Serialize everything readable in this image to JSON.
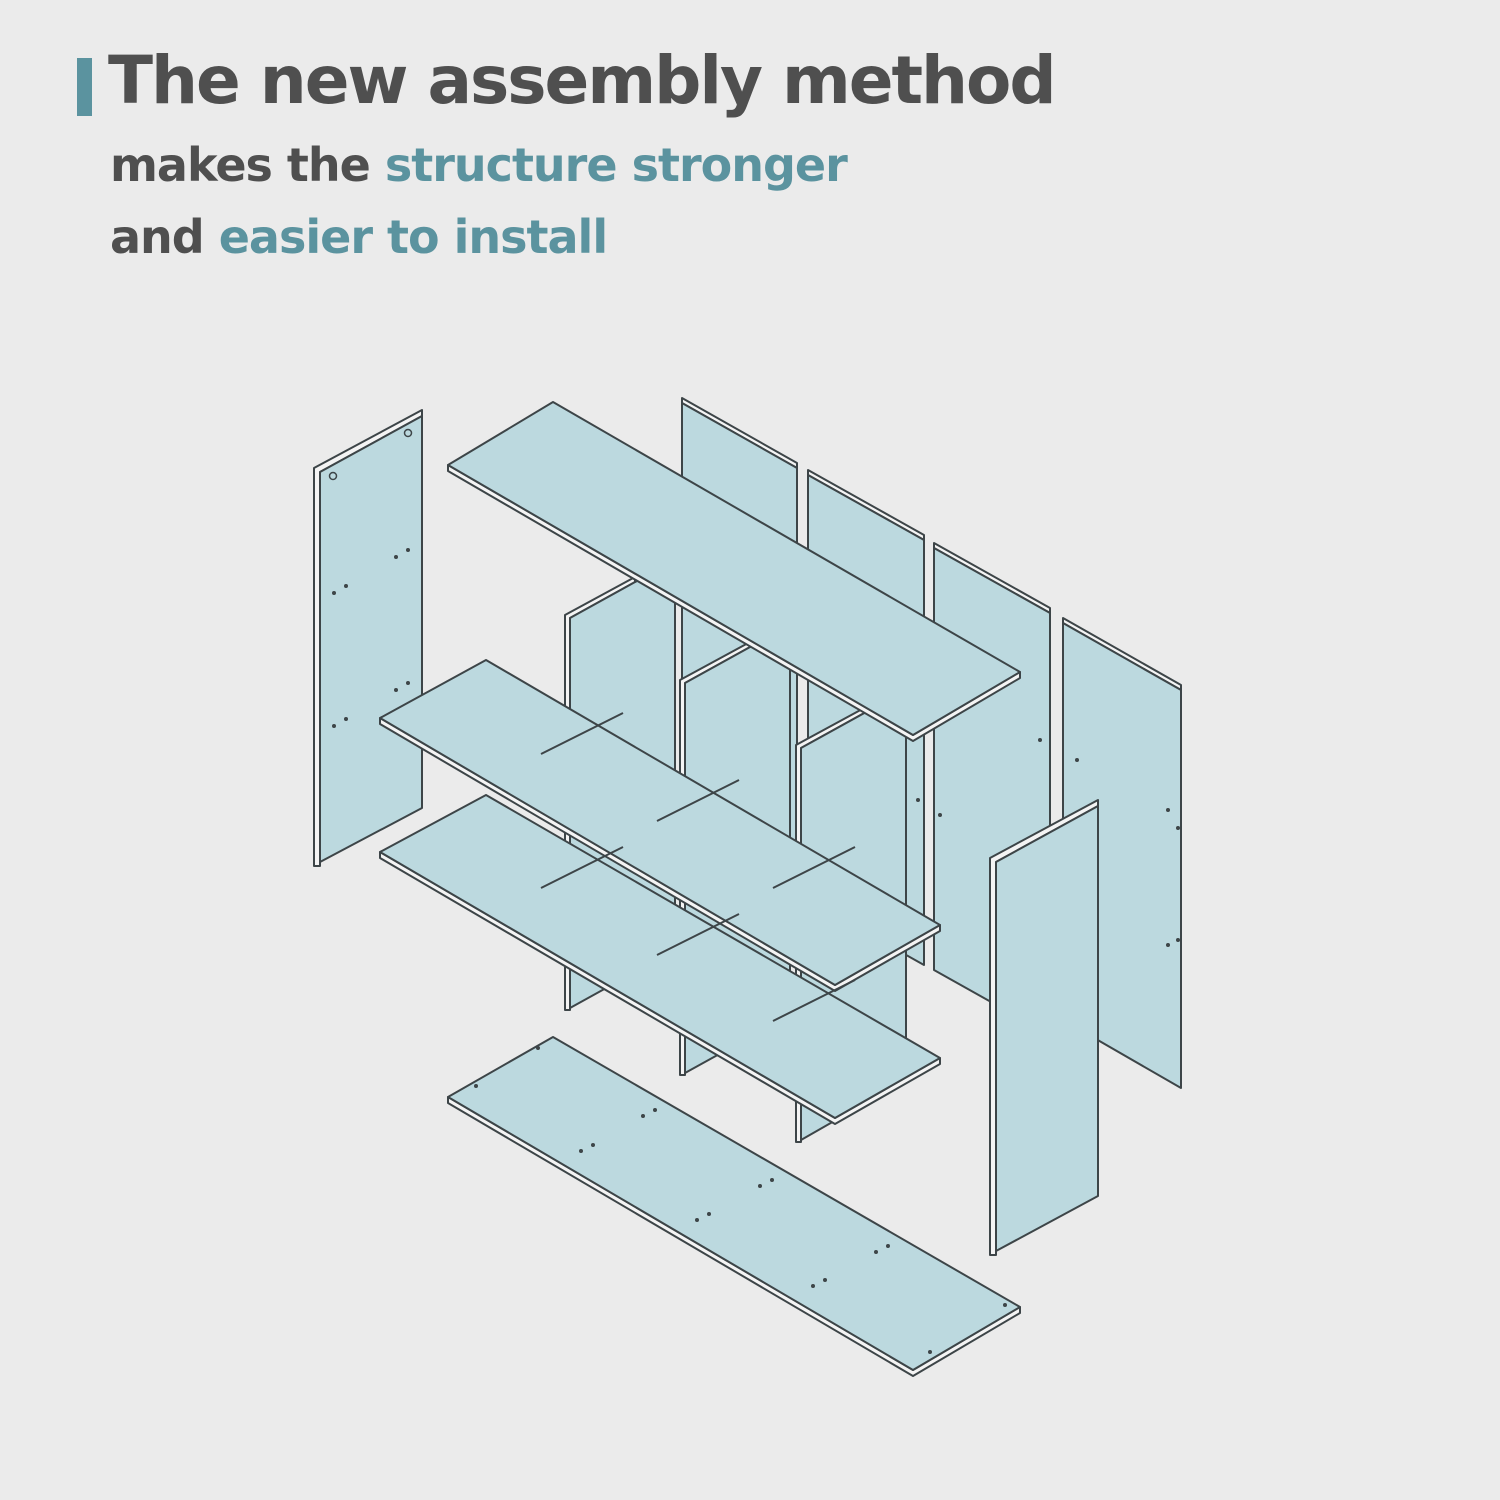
{
  "headline": {
    "title": "The new assembly method",
    "line2_plain": "makes the",
    "line2_accent": "structure stronger",
    "line3_plain": "and",
    "line3_accent": "easier to install"
  },
  "colors": {
    "background": "#ebebeb",
    "text": "#4f4f4f",
    "accent": "#5b939f",
    "panel": "#bcd9df"
  }
}
